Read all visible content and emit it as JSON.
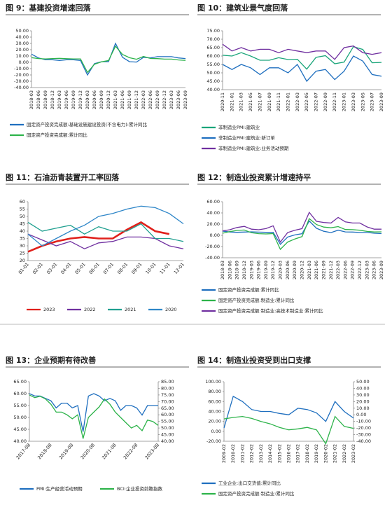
{
  "chart_data": [
    {
      "type": "line",
      "title": "图 9：基建投资增速回落",
      "categories": [
        "2018-03",
        "2018-06",
        "2018-09",
        "2018-12",
        "2019-03",
        "2019-06",
        "2019-09",
        "2019-12",
        "2020-03",
        "2020-06",
        "2020-09",
        "2020-12",
        "2021-03",
        "2021-06",
        "2021-09",
        "2021-12",
        "2022-03",
        "2022-06",
        "2022-09",
        "2022-12",
        "2023-03",
        "2023-06",
        "2023-09"
      ],
      "series": [
        {
          "name": "固定资产投资完成额:基础设施建设投资(不含电力):累计同比",
          "color": "#1f6fbf",
          "values": [
            13,
            7,
            4,
            4,
            3,
            4,
            4,
            3,
            -20,
            -2,
            1,
            1,
            30,
            8,
            1,
            0.4,
            8,
            7,
            9,
            9,
            9,
            7,
            6
          ]
        },
        {
          "name": "固定资产投资完成额:累计同比",
          "color": "#2db34a",
          "values": [
            7.5,
            6,
            5.4,
            5.9,
            6.3,
            5.8,
            5.4,
            5.4,
            -16,
            -3,
            0.8,
            2.9,
            25.6,
            12.6,
            7.3,
            4.9,
            9.3,
            6.1,
            5.9,
            5.1,
            5.1,
            3.8,
            3.1
          ]
        }
      ],
      "ylim": [
        -40,
        50
      ],
      "yticks": [
        {
          "value": -40,
          "label": "-40.00"
        },
        {
          "value": -30,
          "label": "-30.00"
        },
        {
          "value": -20,
          "label": "-20.00"
        },
        {
          "value": -10,
          "label": "-10.00"
        },
        {
          "value": 0,
          "label": "0.00"
        },
        {
          "value": 10,
          "label": "10.00"
        },
        {
          "value": 20,
          "label": "20.00"
        },
        {
          "value": 30,
          "label": "30.00"
        },
        {
          "value": 40,
          "label": "40.00"
        },
        {
          "value": 50,
          "label": "50.00"
        }
      ]
    },
    {
      "type": "line",
      "title": "图 10：建筑业景气度回落",
      "categories": [
        "2020-11",
        "2021-01",
        "2021-03",
        "2021-05",
        "2021-07",
        "2021-09",
        "2021-11",
        "2022-01",
        "2022-03",
        "2022-05",
        "2022-07",
        "2022-09",
        "2022-11",
        "2023-01",
        "2023-03",
        "2023-05",
        "2023-07",
        "2023-09"
      ],
      "series": [
        {
          "name": "非制造业PMI:建筑业",
          "color": "#1aa57a",
          "values": [
            60.5,
            60,
            62,
            60,
            57.5,
            57.5,
            59,
            57.9,
            58.1,
            52.2,
            59.2,
            60.2,
            55.4,
            56.4,
            65.6,
            63.9,
            56,
            56.2
          ]
        },
        {
          "name": "非制造业PMI:建筑业:新订单",
          "color": "#1f6fbf",
          "values": [
            55,
            52,
            55,
            53,
            49,
            53,
            53,
            50,
            55,
            45,
            51,
            52,
            46,
            51,
            60,
            57,
            49,
            48
          ]
        },
        {
          "name": "非制造业PMI:建筑业:业务活动预期",
          "color": "#7030a0",
          "values": [
            67,
            63,
            65,
            63,
            64,
            64,
            62,
            64,
            63,
            62,
            63,
            63,
            58,
            65,
            66,
            62,
            61,
            62
          ]
        }
      ],
      "ylim": [
        40,
        75
      ],
      "yticks": [
        {
          "value": 40,
          "label": "40.00"
        },
        {
          "value": 45,
          "label": "45.00"
        },
        {
          "value": 50,
          "label": "50.00"
        },
        {
          "value": 55,
          "label": "55.00"
        },
        {
          "value": 60,
          "label": "60.00"
        },
        {
          "value": 65,
          "label": "65.00"
        },
        {
          "value": 70,
          "label": "70.00"
        },
        {
          "value": 75,
          "label": "75.00"
        }
      ]
    },
    {
      "type": "line",
      "title": "图 11：石油沥青装置开工率回落",
      "categories": [
        "01-01",
        "02-01",
        "03-01",
        "04-01",
        "05-01",
        "06-01",
        "07-01",
        "08-01",
        "09-01",
        "10-01",
        "11-01",
        "12-01"
      ],
      "series": [
        {
          "name": "2023",
          "color": "#e0201b",
          "values": [
            26,
            30,
            33,
            35,
            36,
            35,
            35,
            41,
            46,
            40,
            38,
            null
          ]
        },
        {
          "name": "2022",
          "color": "#7030a0",
          "values": [
            38,
            34,
            30,
            33,
            28,
            32,
            33,
            36,
            36,
            35,
            30,
            28
          ]
        },
        {
          "name": "2021",
          "color": "#20a090",
          "values": [
            46,
            40,
            42,
            44,
            38,
            43,
            40,
            40,
            45,
            35,
            35,
            33
          ]
        },
        {
          "name": "2020",
          "color": "#2e86c8",
          "values": [
            38,
            30,
            35,
            40,
            44,
            50,
            52,
            55,
            57,
            56,
            52,
            45
          ]
        }
      ],
      "ylim": [
        20,
        60
      ],
      "yticks": [
        20,
        25,
        30,
        35,
        40,
        45,
        50,
        55,
        60
      ]
    },
    {
      "type": "line",
      "title": "图 12：制造业投资累计增速持平",
      "categories": [
        "2018-03",
        "2018-06",
        "2018-09",
        "2018-12",
        "2019-03",
        "2019-06",
        "2019-09",
        "2019-12",
        "2020-03",
        "2020-06",
        "2020-09",
        "2020-12",
        "2021-03",
        "2021-06",
        "2021-09",
        "2021-12",
        "2022-03",
        "2022-06",
        "2022-09",
        "2022-12",
        "2023-03",
        "2023-06",
        "2023-09"
      ],
      "series": [
        {
          "name": "固定资产投资完成额:累计同比",
          "color": "#1f6fbf",
          "values": [
            7.5,
            6,
            5.4,
            5.9,
            6.3,
            5.8,
            5.4,
            5.4,
            -16,
            -3,
            0.8,
            2.9,
            25.6,
            12.6,
            7.3,
            4.9,
            9.3,
            6.1,
            5.9,
            5.1,
            5.1,
            3.8,
            3.1
          ]
        },
        {
          "name": "固定资产投资完成额:制造业:累计同比",
          "color": "#2db34a",
          "values": [
            3.8,
            6.8,
            8.7,
            9.5,
            4.6,
            3,
            2.5,
            3.1,
            -25,
            -12,
            -6.5,
            -2.2,
            29.8,
            19.2,
            14.8,
            13.5,
            15.6,
            10.4,
            10.1,
            9.1,
            7,
            6,
            6.2
          ]
        },
        {
          "name": "固定资产投资完成额:制造业:高技术制造业:累计同比",
          "color": "#7030a0",
          "values": [
            8,
            10,
            14,
            16,
            11,
            10,
            12,
            17,
            -12,
            5,
            9,
            12,
            41,
            25,
            23,
            22,
            32,
            24,
            22,
            22,
            15,
            11,
            11
          ]
        }
      ],
      "ylim": [
        -40,
        60
      ],
      "yticks": [
        {
          "value": -40,
          "label": "-40.00"
        },
        {
          "value": -20,
          "label": "-20.00"
        },
        {
          "value": 0,
          "label": "0.00"
        },
        {
          "value": 20,
          "label": "20.00"
        },
        {
          "value": 40,
          "label": "40.00"
        },
        {
          "value": 60,
          "label": "60.00"
        }
      ]
    },
    {
      "type": "line",
      "title": "图 13：企业预期有待改善",
      "categories": [
        "2017-08",
        null,
        null,
        null,
        "2018-08",
        null,
        null,
        null,
        "2019-08",
        null,
        null,
        null,
        "2020-08",
        null,
        null,
        null,
        "2021-08",
        null,
        null,
        null,
        "2022-08",
        null,
        null,
        null,
        "2023-08"
      ],
      "series": [
        {
          "name": "PMI:生产经营活动预期",
          "color": "#1f6fbf",
          "values": [
            60,
            59,
            59,
            58,
            57,
            54,
            56,
            56,
            54,
            55,
            44,
            59,
            60,
            59,
            57,
            58,
            57,
            53,
            55,
            55,
            54,
            51,
            55,
            55,
            55
          ]
        },
        {
          "name": "BCI:企业投资前瞻指数",
          "color": "#2db34a",
          "axis": "y2",
          "values": [
            75,
            73,
            74,
            72,
            68,
            62,
            62,
            60,
            57,
            60,
            42,
            58,
            62,
            66,
            72,
            68,
            62,
            58,
            54,
            50,
            52,
            48,
            56,
            55,
            52
          ]
        }
      ],
      "ylim": [
        40,
        65
      ],
      "yticks": [
        {
          "value": 40,
          "label": "40.00"
        },
        {
          "value": 45,
          "label": "45.00"
        },
        {
          "value": 50,
          "label": "50.00"
        },
        {
          "value": 55,
          "label": "55.00"
        },
        {
          "value": 60,
          "label": "60.00"
        },
        {
          "value": 65,
          "label": "65.00"
        }
      ],
      "y2lim": [
        40,
        85
      ],
      "y2ticks": [
        {
          "value": 40,
          "label": "40.00"
        },
        {
          "value": 45,
          "label": "45.00"
        },
        {
          "value": 50,
          "label": "50.00"
        },
        {
          "value": 55,
          "label": "55.00"
        },
        {
          "value": 60,
          "label": "60.00"
        },
        {
          "value": 65,
          "label": "65.00"
        },
        {
          "value": 70,
          "label": "70.00"
        },
        {
          "value": 75,
          "label": "75.00"
        },
        {
          "value": 80,
          "label": "80.00"
        },
        {
          "value": 85,
          "label": "85.00"
        }
      ]
    },
    {
      "type": "line",
      "title": "图 14：制造业投资受到出口支撑",
      "categories": [
        "2009-02",
        "2010-02",
        "2011-02",
        "2012-02",
        "2013-02",
        "2014-02",
        "2015-02",
        "2016-02",
        "2017-02",
        "2018-02",
        "2019-02",
        "2020-02",
        "2021-02",
        "2022-02",
        "2023-02"
      ],
      "series": [
        {
          "name": "工业企业:出口交货值:累计同比",
          "color": "#1f6fbf",
          "axis": "y2",
          "values": [
            -20,
            28,
            20,
            8,
            5,
            5,
            2,
            0,
            10,
            8,
            3,
            -10,
            20,
            5,
            -5
          ]
        },
        {
          "name": "固定资产投资完成额:制造业:累计同比",
          "color": "#2db34a",
          "values": [
            25,
            28,
            30,
            26,
            20,
            15,
            8,
            3,
            5,
            8,
            3,
            -25,
            30,
            10,
            6
          ]
        }
      ],
      "ylim": [
        -20,
        100
      ],
      "yticks": [
        {
          "value": -20,
          "label": "-20.00"
        },
        {
          "value": 0,
          "label": "0.00"
        },
        {
          "value": 20,
          "label": "20.00"
        },
        {
          "value": 40,
          "label": "40.00"
        },
        {
          "value": 60,
          "label": "60.00"
        },
        {
          "value": 80,
          "label": "80.00"
        },
        {
          "value": 100,
          "label": "100.00"
        }
      ],
      "y2lim": [
        -40,
        50
      ],
      "y2ticks": [
        {
          "value": -40,
          "label": "-40.00"
        },
        {
          "value": -30,
          "label": "-30.00"
        },
        {
          "value": -20,
          "label": "-20.00"
        },
        {
          "value": -10,
          "label": "-10.00"
        },
        {
          "value": 0,
          "label": "0.00"
        },
        {
          "value": 10,
          "label": "10.00"
        },
        {
          "value": 20,
          "label": "20.00"
        },
        {
          "value": 30,
          "label": "30.00"
        },
        {
          "value": 40,
          "label": "40.00"
        },
        {
          "value": 50,
          "label": "50.00"
        }
      ]
    }
  ]
}
